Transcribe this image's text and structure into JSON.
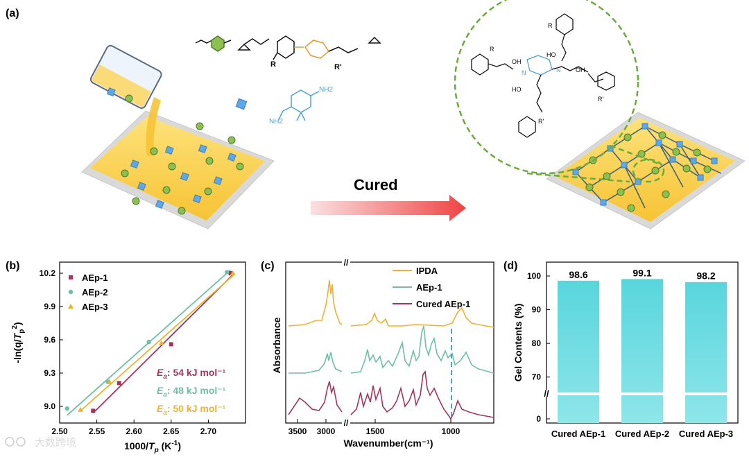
{
  "panel_labels": {
    "a": "(a)",
    "b": "(b)",
    "c": "(c)",
    "d": "(d)"
  },
  "schematic": {
    "arrow_label": "Cured",
    "amine_labels": [
      "NH2",
      "NH2"
    ],
    "epoxy_label": "R'",
    "epoxy_label2": "R",
    "network_labels": [
      "R",
      "R",
      "R'",
      "R'",
      "N",
      "N",
      "HO",
      "OH",
      "HO",
      "OH"
    ]
  },
  "colors": {
    "aep1": "#a3345a",
    "aep2": "#6dbfa6",
    "aep3": "#f0b030",
    "ipda": "#f0b030",
    "bar": "#5fd9de",
    "arrow": "#ee4444",
    "green_dash": "#6aab3c"
  },
  "chart_data": [
    {
      "type": "scatter",
      "panel": "b",
      "ylabel": "-ln(q/Tp²)",
      "xlabel": "1000/Tp (K⁻¹)",
      "xlim": [
        2.5,
        2.75
      ],
      "ylim": [
        8.85,
        10.3
      ],
      "xticks": [
        "2.50",
        "2.55",
        "2.60",
        "2.65",
        "2.70"
      ],
      "xtick_values": [
        2.5,
        2.55,
        2.6,
        2.65,
        2.7
      ],
      "yticks": [
        "9.0",
        "9.3",
        "9.6",
        "9.9",
        "10.2"
      ],
      "ytick_values": [
        9.0,
        9.3,
        9.6,
        9.9,
        10.2
      ],
      "series": [
        {
          "name": "AEp-1",
          "marker": "square",
          "points": [
            [
              2.545,
              8.96
            ],
            [
              2.58,
              9.21
            ],
            [
              2.65,
              9.56
            ],
            [
              2.73,
              10.2
            ]
          ],
          "fit": [
            [
              2.545,
              8.94
            ],
            [
              2.735,
              10.2
            ]
          ],
          "ea": "54 kJ mol⁻¹"
        },
        {
          "name": "AEp-2",
          "marker": "circle",
          "points": [
            [
              2.51,
              8.98
            ],
            [
              2.565,
              9.22
            ],
            [
              2.62,
              9.58
            ],
            [
              2.725,
              10.21
            ]
          ],
          "fit": [
            [
              2.51,
              8.92
            ],
            [
              2.73,
              10.23
            ]
          ],
          "ea": "48 kJ mol⁻¹"
        },
        {
          "name": "AEp-3",
          "marker": "triangle",
          "points": [
            [
              2.528,
              8.97
            ],
            [
              2.567,
              9.22
            ],
            [
              2.637,
              9.57
            ],
            [
              2.733,
              10.2
            ]
          ],
          "fit": [
            [
              2.528,
              8.96
            ],
            [
              2.735,
              10.19
            ]
          ],
          "ea": "50 kJ mol⁻¹"
        }
      ],
      "ea_prefix": "Ea: "
    },
    {
      "type": "line",
      "panel": "c",
      "ylabel": "Absorbance",
      "xlabel": "Wavenumber(cm⁻¹)",
      "xticks": [
        "3500",
        "3000",
        "1500",
        "1000"
      ],
      "axis_break": "//",
      "series": [
        {
          "name": "IPDA"
        },
        {
          "name": "AEp-1"
        },
        {
          "name": "Cured AEp-1"
        }
      ]
    },
    {
      "type": "bar",
      "panel": "d",
      "ylabel": "Gel Contents (%)",
      "categories": [
        "Cured AEp-1",
        "Cured AEp-2",
        "Cured AEp-3"
      ],
      "values": [
        98.6,
        99.1,
        98.2
      ],
      "value_labels": [
        "98.6",
        "99.1",
        "98.2"
      ],
      "ylim_upper": [
        65,
        100
      ],
      "ylim_lower": [
        0,
        5
      ],
      "yticks": [
        "0",
        "70",
        "80",
        "90",
        "100"
      ],
      "ytick_values": [
        0,
        70,
        80,
        90,
        100
      ],
      "axis_break": "//"
    }
  ],
  "watermark": "大数跨境"
}
